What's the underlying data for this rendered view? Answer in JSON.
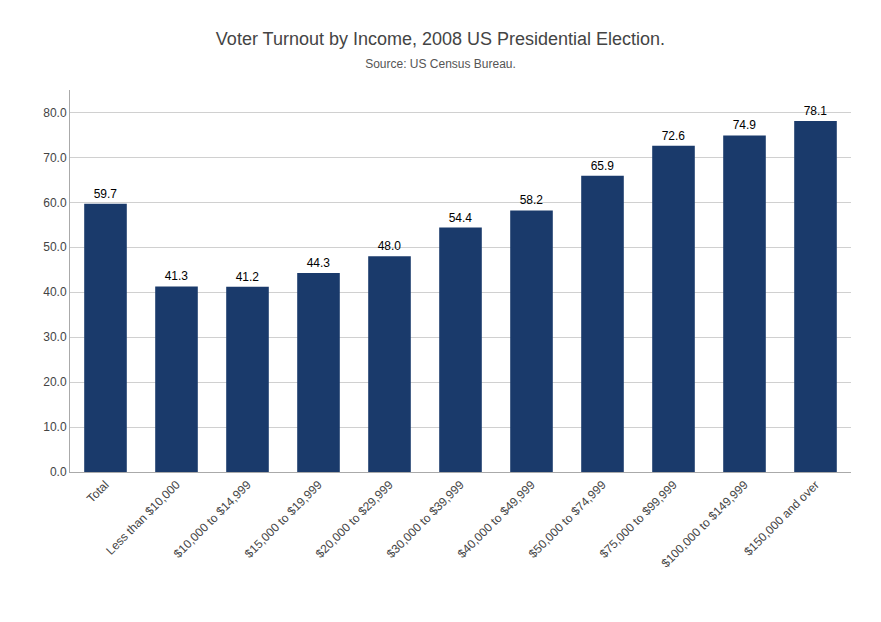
{
  "chart_data": {
    "type": "bar",
    "title": "Voter Turnout by Income, 2008 US Presidential Election.",
    "subtitle": "Source: US Census Bureau.",
    "categories": [
      "Total",
      "Less than $10,000",
      "$10,000 to $14,999",
      "$15,000 to $19,999",
      "$20,000 to $29,999",
      "$30,000 to $39,999",
      "$40,000 to $49,999",
      "$50,000 to $74,999",
      "$75,000 to $99,999",
      "$100,000 to $149,999",
      "$150,000 and over"
    ],
    "values": [
      59.7,
      41.3,
      41.2,
      44.3,
      48.0,
      54.4,
      58.2,
      65.9,
      72.6,
      74.9,
      78.1
    ],
    "value_labels": [
      "59.7",
      "41.3",
      "41.2",
      "44.3",
      "48.0",
      "54.4",
      "58.2",
      "65.9",
      "72.6",
      "74.9",
      "78.1"
    ],
    "data_labels": true,
    "color": "#1a3a6b",
    "ylim": [
      0,
      85
    ],
    "yticks": [
      {
        "value": 0,
        "label": "0.0"
      },
      {
        "value": 10,
        "label": "10.0"
      },
      {
        "value": 20,
        "label": "20.0"
      },
      {
        "value": 30,
        "label": "30.0"
      },
      {
        "value": 40,
        "label": "40.0"
      },
      {
        "value": 50,
        "label": "50.0"
      },
      {
        "value": 60,
        "label": "60.0"
      },
      {
        "value": 70,
        "label": "70.0"
      },
      {
        "value": 80,
        "label": "80.0"
      }
    ],
    "grid": true
  }
}
